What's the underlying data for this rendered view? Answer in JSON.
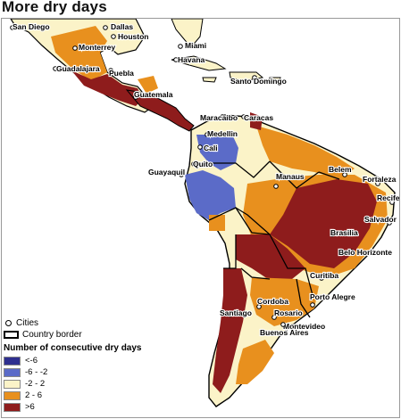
{
  "title": "More dry days",
  "legend": {
    "cities_label": "Cities",
    "border_label": "Country border",
    "title": "Number of consecutive dry days",
    "classes": [
      {
        "label": "<-6",
        "color": "#2e2f8f"
      },
      {
        "label": "-6 - -2",
        "color": "#5b6bc8"
      },
      {
        "label": "-2 - 2",
        "color": "#fbf3c8"
      },
      {
        "label": "2 - 6",
        "color": "#e8901e"
      },
      {
        "label": ">6",
        "color": "#8e1c1c"
      }
    ]
  },
  "cities": [
    {
      "name": "San Diego"
    },
    {
      "name": "Dallas"
    },
    {
      "name": "Houston"
    },
    {
      "name": "Monterrey"
    },
    {
      "name": "Miami"
    },
    {
      "name": "Havana"
    },
    {
      "name": "Guadalajara"
    },
    {
      "name": "Puebla"
    },
    {
      "name": "Santo Domingo"
    },
    {
      "name": "Guatemala"
    },
    {
      "name": "Maracaibo"
    },
    {
      "name": "Caracas"
    },
    {
      "name": "Medellin"
    },
    {
      "name": "Cali"
    },
    {
      "name": "Quito"
    },
    {
      "name": "Guayaquil"
    },
    {
      "name": "Manaus"
    },
    {
      "name": "Belem"
    },
    {
      "name": "Fortaleza"
    },
    {
      "name": "Recife"
    },
    {
      "name": "Salvador"
    },
    {
      "name": "Brasilia"
    },
    {
      "name": "Belo Horizonte"
    },
    {
      "name": "Curitiba"
    },
    {
      "name": "Porto Alegre"
    },
    {
      "name": "Santiago"
    },
    {
      "name": "Cordoba"
    },
    {
      "name": "Rosario"
    },
    {
      "name": "Montevideo"
    },
    {
      "name": "Buenos Aires"
    }
  ]
}
